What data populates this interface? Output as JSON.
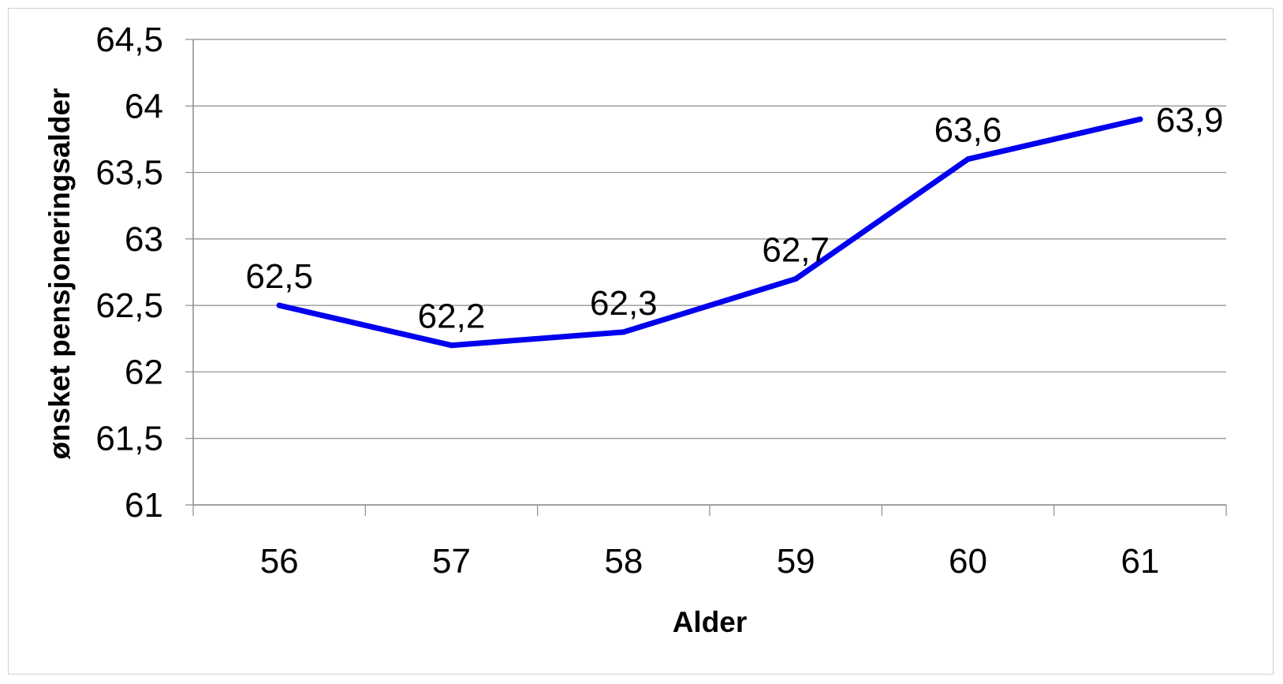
{
  "chart_data": {
    "type": "line",
    "categories": [
      "56",
      "57",
      "58",
      "59",
      "60",
      "61"
    ],
    "series": [
      {
        "values": [
          62.5,
          62.2,
          62.3,
          62.7,
          63.6,
          63.9
        ],
        "data_labels": [
          "62,5",
          "62,2",
          "62,3",
          "62,7",
          "63,6",
          "63,9"
        ],
        "color": "#0000ee"
      }
    ],
    "xlabel": "Alder",
    "ylabel": "ønsket pensjoneringsalder",
    "ylim": [
      61,
      64.5
    ],
    "yticks": [
      61,
      61.5,
      62,
      62.5,
      63,
      63.5,
      64,
      64.5
    ],
    "ytick_labels": [
      "61",
      "61,5",
      "62",
      "62,5",
      "63",
      "63,5",
      "64",
      "64,5"
    ],
    "grid": true,
    "gridline_color": "#8c8c8c",
    "axis_color": "#8c8c8c",
    "legend": "none"
  }
}
